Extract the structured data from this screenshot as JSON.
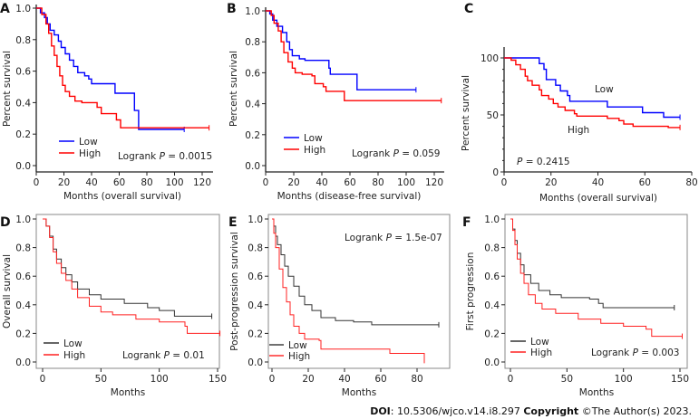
{
  "chart_data": [
    {
      "panel": "A",
      "type": "line",
      "style": "axes",
      "ylabel": "Percent survival",
      "xlabel": "Months (overall survival)",
      "xlim": [
        0,
        120
      ],
      "xticks": [
        0,
        20,
        40,
        60,
        80,
        100,
        120
      ],
      "ylim": [
        0,
        1
      ],
      "yticks": [
        "0.0",
        "0.2",
        "0.4",
        "0.6",
        "0.8",
        "1.0"
      ],
      "legend": [
        "Low",
        "High"
      ],
      "logrank": "Logrank",
      "p": "P",
      "pvalue": "= 0.0015",
      "series": [
        {
          "name": "Low",
          "color": "#0000ff",
          "points": [
            [
              0,
              1
            ],
            [
              3,
              0.97
            ],
            [
              6,
              0.94
            ],
            [
              8,
              0.9
            ],
            [
              10,
              0.86
            ],
            [
              13,
              0.83
            ],
            [
              16,
              0.79
            ],
            [
              18,
              0.75
            ],
            [
              21,
              0.71
            ],
            [
              24,
              0.67
            ],
            [
              27,
              0.63
            ],
            [
              30,
              0.59
            ],
            [
              35,
              0.57
            ],
            [
              38,
              0.55
            ],
            [
              40,
              0.52
            ],
            [
              57,
              0.46
            ],
            [
              71,
              0.35
            ],
            [
              74,
              0.23
            ],
            [
              107,
              0.23
            ]
          ]
        },
        {
          "name": "High",
          "color": "#ff0000",
          "points": [
            [
              0,
              1
            ],
            [
              4,
              0.96
            ],
            [
              7,
              0.9
            ],
            [
              9,
              0.84
            ],
            [
              11,
              0.76
            ],
            [
              13,
              0.7
            ],
            [
              15,
              0.63
            ],
            [
              17,
              0.57
            ],
            [
              19,
              0.51
            ],
            [
              21,
              0.47
            ],
            [
              24,
              0.44
            ],
            [
              28,
              0.41
            ],
            [
              33,
              0.4
            ],
            [
              44,
              0.37
            ],
            [
              47,
              0.33
            ],
            [
              58,
              0.29
            ],
            [
              61,
              0.24
            ],
            [
              125,
              0.24
            ]
          ]
        }
      ]
    },
    {
      "panel": "B",
      "type": "line",
      "style": "axes",
      "ylabel": "Percent survival",
      "xlabel": "Months (disease-free survival)",
      "xlim": [
        0,
        120
      ],
      "xticks": [
        0,
        20,
        40,
        60,
        80,
        100,
        120
      ],
      "ylim": [
        0,
        1
      ],
      "yticks": [
        "0.0",
        "0.2",
        "0.4",
        "0.6",
        "0.8",
        "1.0"
      ],
      "legend": [
        "Low",
        "High"
      ],
      "logrank": "Logrank",
      "p": "P",
      "pvalue": "= 0.059",
      "series": [
        {
          "name": "Low",
          "color": "#0000ff",
          "points": [
            [
              0,
              1
            ],
            [
              3,
              0.98
            ],
            [
              5,
              0.94
            ],
            [
              8,
              0.9
            ],
            [
              12,
              0.86
            ],
            [
              15,
              0.8
            ],
            [
              17,
              0.75
            ],
            [
              19,
              0.71
            ],
            [
              24,
              0.69
            ],
            [
              28,
              0.68
            ],
            [
              44,
              0.68
            ],
            [
              45,
              0.63
            ],
            [
              46,
              0.59
            ],
            [
              64,
              0.59
            ],
            [
              65,
              0.49
            ],
            [
              107,
              0.49
            ]
          ]
        },
        {
          "name": "High",
          "color": "#ff0000",
          "points": [
            [
              0,
              1
            ],
            [
              4,
              0.97
            ],
            [
              6,
              0.92
            ],
            [
              9,
              0.87
            ],
            [
              11,
              0.8
            ],
            [
              13,
              0.73
            ],
            [
              16,
              0.67
            ],
            [
              19,
              0.63
            ],
            [
              21,
              0.6
            ],
            [
              26,
              0.59
            ],
            [
              33,
              0.58
            ],
            [
              35,
              0.53
            ],
            [
              41,
              0.51
            ],
            [
              43,
              0.48
            ],
            [
              56,
              0.42
            ],
            [
              125,
              0.42
            ]
          ]
        }
      ]
    },
    {
      "panel": "C",
      "type": "line",
      "style": "axes",
      "ylabel": "Percent survival",
      "xlabel": "Months (overall survival)",
      "xlim": [
        0,
        80
      ],
      "xticks": [
        0,
        20,
        40,
        60,
        80
      ],
      "ylim": [
        0,
        100
      ],
      "yticks": [
        "0",
        "50",
        "100"
      ],
      "legend": [
        "Low",
        "High"
      ],
      "logrank": "",
      "p": "P",
      "pvalue": "= 0.2415",
      "series": [
        {
          "name": "Low",
          "color": "#0000ff",
          "points": [
            [
              0,
              100
            ],
            [
              15,
              95
            ],
            [
              17,
              90
            ],
            [
              18,
              81
            ],
            [
              22,
              76
            ],
            [
              24,
              71
            ],
            [
              27,
              67
            ],
            [
              28,
              62
            ],
            [
              44,
              57
            ],
            [
              59,
              52
            ],
            [
              68,
              48
            ],
            [
              75,
              48
            ]
          ]
        },
        {
          "name": "High",
          "color": "#ff0000",
          "points": [
            [
              0,
              100
            ],
            [
              3,
              98
            ],
            [
              5,
              94
            ],
            [
              7,
              90
            ],
            [
              9,
              84
            ],
            [
              10,
              80
            ],
            [
              12,
              76
            ],
            [
              15,
              72
            ],
            [
              16,
              67
            ],
            [
              19,
              64
            ],
            [
              21,
              60
            ],
            [
              23,
              57
            ],
            [
              26,
              54
            ],
            [
              30,
              51
            ],
            [
              31,
              49
            ],
            [
              44,
              47
            ],
            [
              49,
              45
            ],
            [
              51,
              42
            ],
            [
              55,
              40
            ],
            [
              70,
              39
            ],
            [
              75,
              39
            ]
          ]
        }
      ]
    },
    {
      "panel": "D",
      "type": "line",
      "style": "box",
      "ylabel": "Overall survival",
      "xlabel": "Months",
      "xlim": [
        0,
        150
      ],
      "xticks": [
        0,
        50,
        100,
        150
      ],
      "ylim": [
        0,
        1
      ],
      "yticks": [
        "0.0",
        "0.2",
        "0.4",
        "0.6",
        "0.8",
        "1.0"
      ],
      "legend": [
        "Low",
        "High"
      ],
      "logrank": "Logrank",
      "p": "P",
      "pvalue": "= 0.01",
      "series": [
        {
          "name": "Low",
          "color": "#333333",
          "points": [
            [
              0,
              1
            ],
            [
              3,
              0.95
            ],
            [
              6,
              0.88
            ],
            [
              9,
              0.79
            ],
            [
              12,
              0.72
            ],
            [
              16,
              0.66
            ],
            [
              20,
              0.61
            ],
            [
              25,
              0.56
            ],
            [
              30,
              0.51
            ],
            [
              40,
              0.47
            ],
            [
              50,
              0.44
            ],
            [
              70,
              0.41
            ],
            [
              90,
              0.38
            ],
            [
              100,
              0.36
            ],
            [
              113,
              0.32
            ],
            [
              145,
              0.32
            ]
          ]
        },
        {
          "name": "High",
          "color": "#ff2020",
          "points": [
            [
              0,
              1
            ],
            [
              3,
              0.95
            ],
            [
              6,
              0.87
            ],
            [
              9,
              0.77
            ],
            [
              12,
              0.69
            ],
            [
              16,
              0.62
            ],
            [
              20,
              0.57
            ],
            [
              25,
              0.51
            ],
            [
              30,
              0.45
            ],
            [
              40,
              0.39
            ],
            [
              50,
              0.35
            ],
            [
              60,
              0.33
            ],
            [
              80,
              0.3
            ],
            [
              100,
              0.28
            ],
            [
              122,
              0.25
            ],
            [
              124,
              0.2
            ],
            [
              152,
              0.2
            ]
          ]
        }
      ]
    },
    {
      "panel": "E",
      "type": "line",
      "style": "box",
      "ylabel": "Post-progression survival",
      "xlabel": "Months",
      "xlim": [
        0,
        80
      ],
      "xticks": [
        0,
        20,
        40,
        60,
        80
      ],
      "ylim": [
        0,
        1
      ],
      "yticks": [
        "0.0",
        "0.2",
        "0.4",
        "0.6",
        "0.8",
        "1.0"
      ],
      "legend": [
        "Low",
        "High"
      ],
      "logrank": "Logrank",
      "p": "P",
      "pvalue": "= 1.5e-07",
      "series": [
        {
          "name": "Low",
          "color": "#333333",
          "points": [
            [
              0,
              1
            ],
            [
              1,
              0.95
            ],
            [
              2,
              0.88
            ],
            [
              3,
              0.82
            ],
            [
              5,
              0.75
            ],
            [
              7,
              0.67
            ],
            [
              9,
              0.6
            ],
            [
              12,
              0.53
            ],
            [
              15,
              0.46
            ],
            [
              18,
              0.4
            ],
            [
              22,
              0.36
            ],
            [
              27,
              0.31
            ],
            [
              35,
              0.29
            ],
            [
              45,
              0.28
            ],
            [
              55,
              0.26
            ],
            [
              92,
              0.26
            ]
          ]
        },
        {
          "name": "High",
          "color": "#ff2020",
          "points": [
            [
              0,
              1
            ],
            [
              1,
              0.9
            ],
            [
              2,
              0.8
            ],
            [
              4,
              0.65
            ],
            [
              6,
              0.52
            ],
            [
              8,
              0.42
            ],
            [
              10,
              0.33
            ],
            [
              12,
              0.25
            ],
            [
              15,
              0.2
            ],
            [
              18,
              0.16
            ],
            [
              26,
              0.15
            ],
            [
              27,
              0.09
            ],
            [
              65,
              0.06
            ],
            [
              84,
              0.01
            ]
          ]
        }
      ]
    },
    {
      "panel": "F",
      "type": "line",
      "style": "box",
      "ylabel": "First progression",
      "xlabel": "Months",
      "xlim": [
        0,
        150
      ],
      "xticks": [
        0,
        50,
        100,
        150
      ],
      "ylim": [
        0,
        1
      ],
      "yticks": [
        "0.0",
        "0.2",
        "0.4",
        "0.6",
        "0.8",
        "1.0"
      ],
      "legend": [
        "Low",
        "High"
      ],
      "logrank": "Logrank",
      "p": "P",
      "pvalue": "= 0.003",
      "series": [
        {
          "name": "Low",
          "color": "#333333",
          "points": [
            [
              0,
              1
            ],
            [
              2,
              0.93
            ],
            [
              4,
              0.85
            ],
            [
              6,
              0.76
            ],
            [
              9,
              0.68
            ],
            [
              12,
              0.61
            ],
            [
              18,
              0.55
            ],
            [
              25,
              0.5
            ],
            [
              35,
              0.47
            ],
            [
              45,
              0.45
            ],
            [
              70,
              0.44
            ],
            [
              78,
              0.41
            ],
            [
              82,
              0.38
            ],
            [
              145,
              0.38
            ]
          ]
        },
        {
          "name": "High",
          "color": "#ff2020",
          "points": [
            [
              0,
              1
            ],
            [
              2,
              0.92
            ],
            [
              4,
              0.82
            ],
            [
              6,
              0.72
            ],
            [
              9,
              0.62
            ],
            [
              12,
              0.55
            ],
            [
              16,
              0.47
            ],
            [
              22,
              0.41
            ],
            [
              28,
              0.37
            ],
            [
              40,
              0.34
            ],
            [
              60,
              0.3
            ],
            [
              80,
              0.27
            ],
            [
              100,
              0.25
            ],
            [
              120,
              0.23
            ],
            [
              125,
              0.18
            ],
            [
              152,
              0.18
            ]
          ]
        }
      ]
    }
  ],
  "footer": {
    "doi_label": "DOI",
    "doi": ": 10.5306/wjco.v14.i8.297 ",
    "copyright_label": "Copyright",
    "copyright": " ©The Author(s) 2023."
  }
}
